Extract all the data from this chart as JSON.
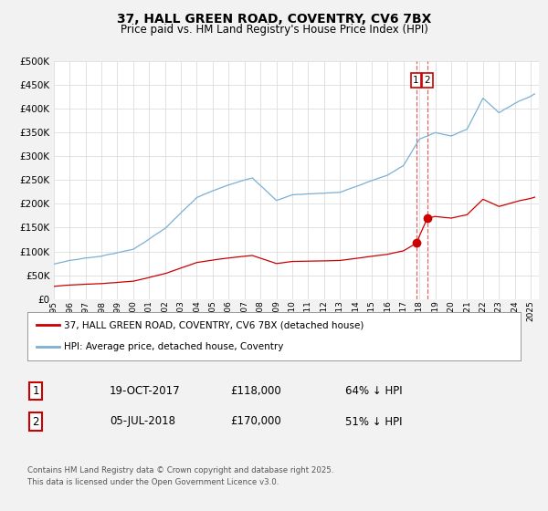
{
  "title": "37, HALL GREEN ROAD, COVENTRY, CV6 7BX",
  "subtitle": "Price paid vs. HM Land Registry's House Price Index (HPI)",
  "background_color": "#f2f2f2",
  "plot_bg_color": "#ffffff",
  "grid_color": "#dddddd",
  "hpi_color": "#7ab0d4",
  "price_color": "#cc0000",
  "ylim": [
    0,
    500000
  ],
  "yticks": [
    0,
    50000,
    100000,
    150000,
    200000,
    250000,
    300000,
    350000,
    400000,
    450000,
    500000
  ],
  "xlim_start": 1995.0,
  "xlim_end": 2025.5,
  "transaction1_date": 2017.79,
  "transaction1_value": 118000,
  "transaction1_label": "1",
  "transaction2_date": 2018.5,
  "transaction2_value": 170000,
  "transaction2_label": "2",
  "legend_label_price": "37, HALL GREEN ROAD, COVENTRY, CV6 7BX (detached house)",
  "legend_label_hpi": "HPI: Average price, detached house, Coventry",
  "footer": "Contains HM Land Registry data © Crown copyright and database right 2025.\nThis data is licensed under the Open Government Licence v3.0.",
  "table_row1": [
    "1",
    "19-OCT-2017",
    "£118,000",
    "64% ↓ HPI"
  ],
  "table_row2": [
    "2",
    "05-JUL-2018",
    "£170,000",
    "51% ↓ HPI"
  ]
}
